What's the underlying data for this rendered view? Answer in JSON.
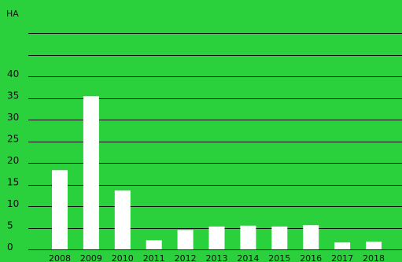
{
  "colors": {
    "background": "#2ad13d",
    "bar": "#ffffff",
    "grid": "#111111",
    "text": "#111111"
  },
  "chart_data": {
    "type": "bar",
    "title": "",
    "xlabel": "",
    "ylabel": "HA",
    "categories": [
      "2008",
      "2009",
      "2010",
      "2011",
      "2012",
      "2013",
      "2014",
      "2015",
      "2016",
      "2017",
      "2018"
    ],
    "values": [
      18.3,
      35.4,
      13.6,
      2.1,
      4.5,
      5.3,
      5.5,
      5.3,
      5.6,
      1.6,
      1.8
    ],
    "y_ticks": [
      "0",
      "5",
      "10",
      "15",
      "20",
      "25",
      "30",
      "35",
      "40"
    ],
    "ylim": [
      0,
      50
    ],
    "grid": true,
    "legend": "none"
  }
}
